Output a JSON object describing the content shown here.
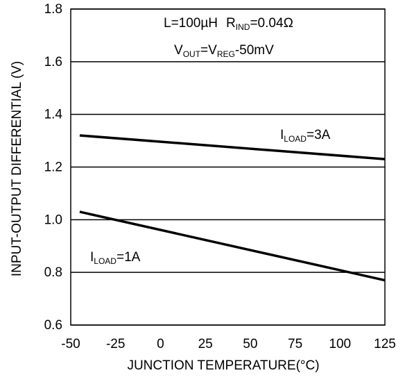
{
  "chart_data": {
    "type": "line",
    "xlabel": "JUNCTION TEMPERATURE(°C)",
    "ylabel": "INPUT-OUTPUT DIFFERENTIAL (V)",
    "xlim": [
      -50,
      125
    ],
    "ylim": [
      0.6,
      1.8
    ],
    "x_ticks": [
      -50,
      -25,
      0,
      25,
      50,
      75,
      100,
      125
    ],
    "x_tick_labels": [
      "-50",
      "-25",
      "0",
      "25",
      "50",
      "75",
      "100",
      "125"
    ],
    "y_ticks": [
      0.6,
      0.8,
      1.0,
      1.2,
      1.4,
      1.6,
      1.8
    ],
    "y_tick_labels": [
      "0.6",
      "0.8",
      "1.0",
      "1.2",
      "1.4",
      "1.6",
      "1.8"
    ],
    "grid": "horizontal",
    "series": [
      {
        "name": "ILOAD=3A",
        "x": [
          -45,
          125
        ],
        "y": [
          1.32,
          1.23
        ]
      },
      {
        "name": "ILOAD=1A",
        "x": [
          -45,
          125
        ],
        "y": [
          1.03,
          0.77
        ]
      }
    ],
    "annotations": {
      "cond1": {
        "l": "L=100µH",
        "r_main": "R",
        "r_sub": "IND",
        "r_val": "=0.04Ω"
      },
      "cond2": {
        "v_main": "V",
        "v_sub": "OUT",
        "eq": "=V",
        "reg_sub": "REG",
        "rest": "-50mV"
      },
      "load3": {
        "main": "I",
        "sub": "LOAD",
        "val": "=3A"
      },
      "load1": {
        "main": "I",
        "sub": "LOAD",
        "val": "=1A"
      }
    },
    "colors": {
      "line": "#000000",
      "grid": "#000000",
      "background": "#ffffff"
    }
  }
}
